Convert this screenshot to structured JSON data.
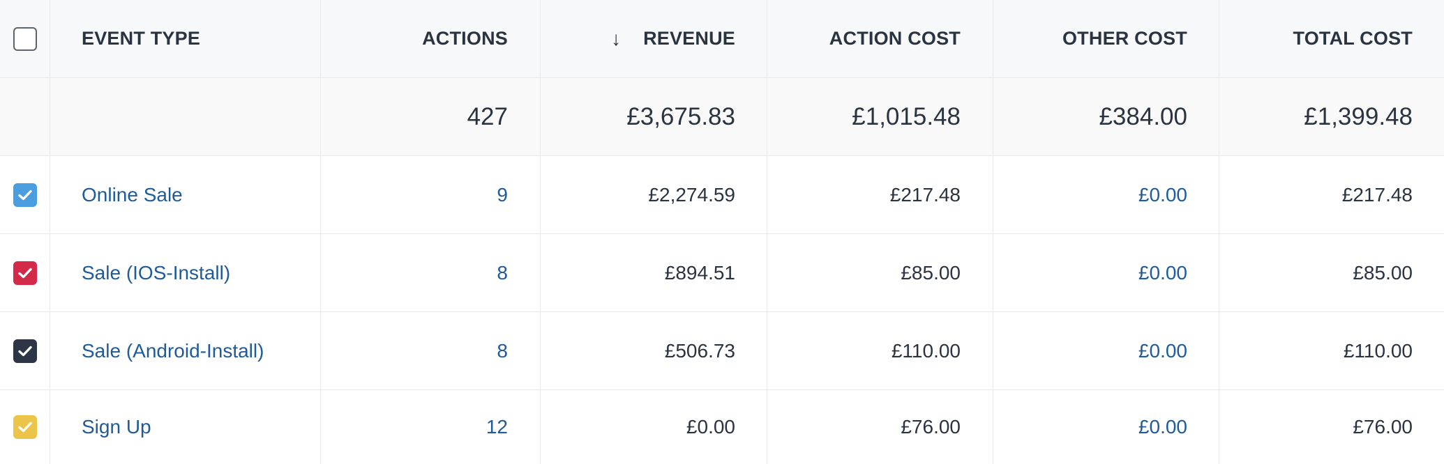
{
  "headers": {
    "event_type": "EVENT TYPE",
    "actions": "ACTIONS",
    "sort_arrow": "↓",
    "revenue": "REVENUE",
    "action_cost": "ACTION COST",
    "other_cost": "OTHER COST",
    "total_cost": "TOTAL COST"
  },
  "totals": {
    "actions": "427",
    "revenue": "£3,675.83",
    "action_cost": "£1,015.48",
    "other_cost": "£384.00",
    "total_cost": "£1,399.48"
  },
  "rows": [
    {
      "event_type": "Online Sale",
      "actions": "9",
      "revenue": "£2,274.59",
      "action_cost": "£217.48",
      "other_cost": "£0.00",
      "total_cost": "£217.48",
      "checked": true,
      "color": "#4a9ee0"
    },
    {
      "event_type": "Sale (IOS-Install)",
      "actions": "8",
      "revenue": "£894.51",
      "action_cost": "£85.00",
      "other_cost": "£0.00",
      "total_cost": "£85.00",
      "checked": true,
      "color": "#d42a4a"
    },
    {
      "event_type": "Sale (Android-Install)",
      "actions": "8",
      "revenue": "£506.73",
      "action_cost": "£110.00",
      "other_cost": "£0.00",
      "total_cost": "£110.00",
      "checked": true,
      "color": "#2c3646"
    },
    {
      "event_type": "Sign Up",
      "actions": "12",
      "revenue": "£0.00",
      "action_cost": "£76.00",
      "other_cost": "£0.00",
      "total_cost": "£76.00",
      "checked": true,
      "color": "#ecc44a"
    }
  ],
  "icons": {
    "select_all": "checkbox-empty-icon",
    "row_check": "checkmark-icon",
    "sort": "arrow-down-icon"
  }
}
